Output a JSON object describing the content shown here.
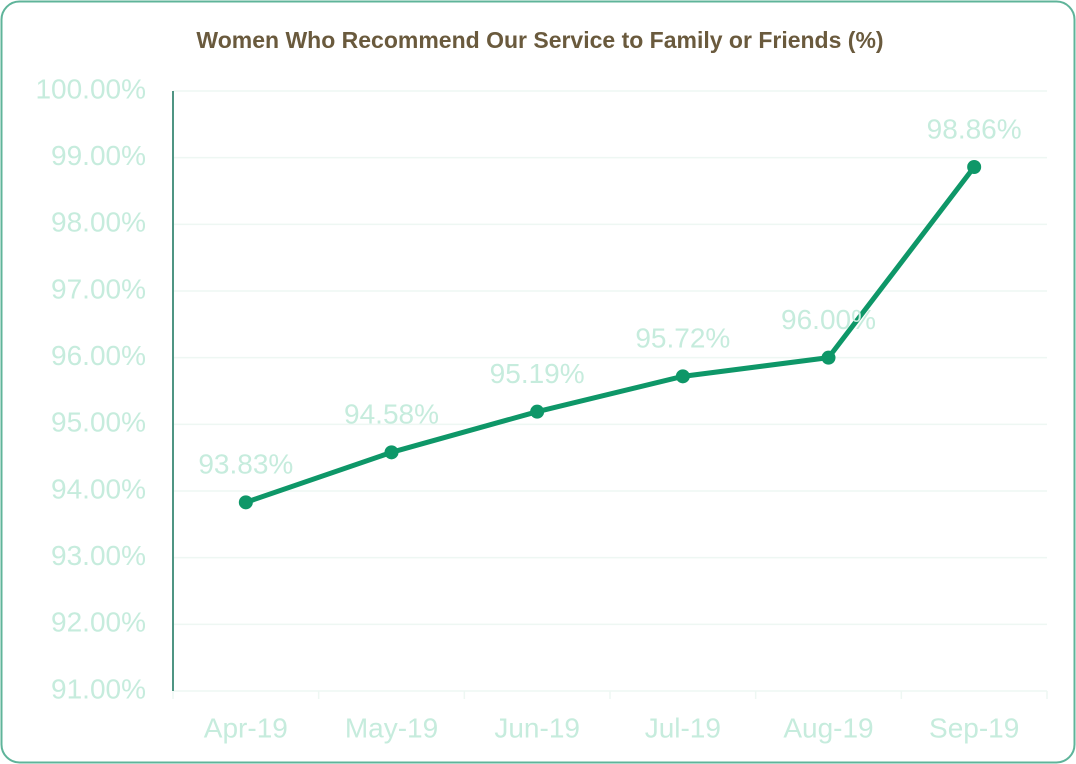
{
  "chart_data": {
    "type": "line",
    "title": "Women Who Recommend Our Service to Family or Friends (%)",
    "categories": [
      "Apr-19",
      "May-19",
      "Jun-19",
      "Jul-19",
      "Aug-19",
      "Sep-19"
    ],
    "series": [
      {
        "name": "Women Who Recommend",
        "color": "#0e9768",
        "values": [
          93.83,
          94.58,
          95.19,
          95.72,
          96.0,
          98.86
        ],
        "value_labels": [
          "93.83%",
          "94.58%",
          "95.19%",
          "95.72%",
          "96.00%",
          "98.86%"
        ]
      }
    ],
    "ylim": [
      91,
      100
    ],
    "yticks": [
      {
        "value": 91,
        "label": "91.00%"
      },
      {
        "value": 92,
        "label": "92.00%"
      },
      {
        "value": 93,
        "label": "93.00%"
      },
      {
        "value": 94,
        "label": "94.00%"
      },
      {
        "value": 95,
        "label": "95.00%"
      },
      {
        "value": 96,
        "label": "96.00%"
      },
      {
        "value": 97,
        "label": "97.00%"
      },
      {
        "value": 98,
        "label": "98.00%"
      },
      {
        "value": 99,
        "label": "99.00%"
      },
      {
        "value": 100,
        "label": "100.00%"
      }
    ],
    "grid": true
  }
}
